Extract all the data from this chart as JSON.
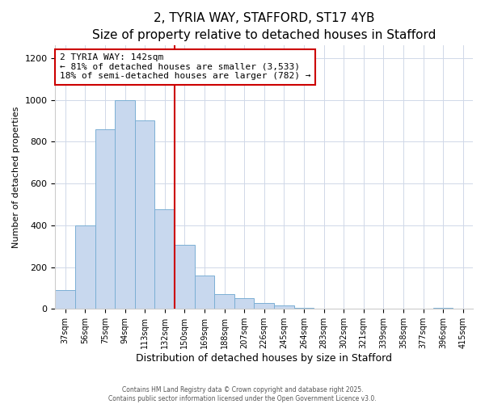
{
  "title": "2, TYRIA WAY, STAFFORD, ST17 4YB",
  "subtitle": "Size of property relative to detached houses in Stafford",
  "xlabel": "Distribution of detached houses by size in Stafford",
  "ylabel": "Number of detached properties",
  "bar_labels": [
    "37sqm",
    "56sqm",
    "75sqm",
    "94sqm",
    "113sqm",
    "132sqm",
    "150sqm",
    "169sqm",
    "188sqm",
    "207sqm",
    "226sqm",
    "245sqm",
    "264sqm",
    "283sqm",
    "302sqm",
    "321sqm",
    "339sqm",
    "358sqm",
    "377sqm",
    "396sqm",
    "415sqm"
  ],
  "bar_values": [
    90,
    400,
    860,
    1000,
    900,
    475,
    305,
    160,
    70,
    50,
    30,
    15,
    5,
    2,
    1,
    0,
    0,
    0,
    0,
    5,
    0
  ],
  "bar_color": "#c8d8ee",
  "bar_edge_color": "#7bafd4",
  "vline_x": 6,
  "vline_color": "#cc0000",
  "annotation_title": "2 TYRIA WAY: 142sqm",
  "annotation_line1": "← 81% of detached houses are smaller (3,533)",
  "annotation_line2": "18% of semi-detached houses are larger (782) →",
  "annotation_box_color": "#ffffff",
  "annotation_box_edge": "#cc0000",
  "ylim": [
    0,
    1260
  ],
  "yticks": [
    0,
    200,
    400,
    600,
    800,
    1000,
    1200
  ],
  "footer1": "Contains HM Land Registry data © Crown copyright and database right 2025.",
  "footer2": "Contains public sector information licensed under the Open Government Licence v3.0.",
  "bg_color": "#ffffff",
  "plot_bg_color": "#ffffff",
  "title_fontsize": 11,
  "grid_color": "#d0d8e8"
}
